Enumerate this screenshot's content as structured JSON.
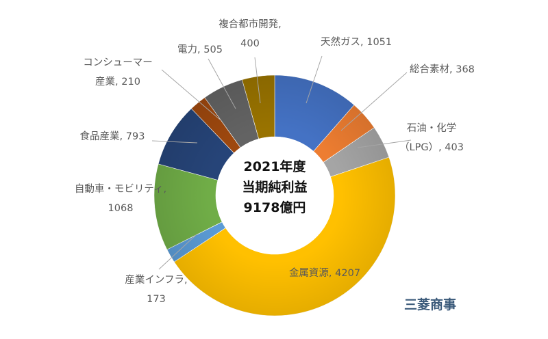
{
  "chart_data": {
    "type": "pie",
    "subtype": "donut",
    "center_text": [
      "2021年度",
      "当期純利益",
      "9178億円"
    ],
    "company": "三菱商事",
    "slices": [
      {
        "label": "天然ガス",
        "value": 1051,
        "color": "#4472c4",
        "label_lines": [
          "天然ガス, 1051"
        ]
      },
      {
        "label": "総合素材",
        "value": 368,
        "color": "#ed7d31",
        "label_lines": [
          "総合素材, 368"
        ]
      },
      {
        "label": "石油・化学（LPG）",
        "value": 403,
        "color": "#a5a5a5",
        "label_lines": [
          "石油・化学",
          "（LPG）, 403"
        ]
      },
      {
        "label": "金属資源",
        "value": 4207,
        "color": "#ffc000",
        "label_lines": [
          "金属資源, 4207"
        ]
      },
      {
        "label": "産業インフラ",
        "value": 173,
        "color": "#5b9bd5",
        "label_lines": [
          "産業インフラ,",
          "173"
        ]
      },
      {
        "label": "自動車・モビリティ",
        "value": 1068,
        "color": "#70ad47",
        "label_lines": [
          "自動車・モビリティ,",
          "1068"
        ]
      },
      {
        "label": "食品産業",
        "value": 793,
        "color": "#264478",
        "label_lines": [
          "食品産業, 793"
        ]
      },
      {
        "label": "コンシューマー産業",
        "value": 210,
        "color": "#9e480e",
        "label_lines": [
          "コンシューマー",
          "産業, 210"
        ]
      },
      {
        "label": "電力",
        "value": 505,
        "color": "#636363",
        "label_lines": [
          "電力, 505"
        ]
      },
      {
        "label": "複合都市開発",
        "value": 400,
        "color": "#997300",
        "label_lines": [
          "複合都市開発,",
          "400"
        ]
      }
    ]
  }
}
